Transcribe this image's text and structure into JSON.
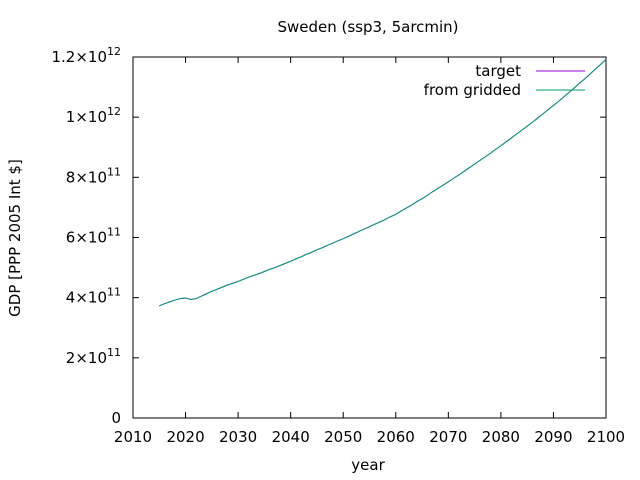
{
  "chart_data": {
    "type": "line",
    "title": "Sweden (ssp3, 5arcmin)",
    "xlabel": "year",
    "ylabel": "GDP [PPP 2005 Int $]",
    "xlim": [
      2010,
      2100
    ],
    "ylim": [
      0,
      1200000000000.0
    ],
    "xticks": [
      2010,
      2020,
      2030,
      2040,
      2050,
      2060,
      2070,
      2080,
      2090,
      2100
    ],
    "yticks": [
      {
        "value": 0,
        "mantissa": "0",
        "exponent": ""
      },
      {
        "value": 200000000000.0,
        "mantissa": "2×10",
        "exponent": "11"
      },
      {
        "value": 400000000000.0,
        "mantissa": "4×10",
        "exponent": "11"
      },
      {
        "value": 600000000000.0,
        "mantissa": "6×10",
        "exponent": "11"
      },
      {
        "value": 800000000000.0,
        "mantissa": "8×10",
        "exponent": "11"
      },
      {
        "value": 1000000000000.0,
        "mantissa": "1×10",
        "exponent": "12"
      },
      {
        "value": 1200000000000.0,
        "mantissa": "1.2×10",
        "exponent": "12"
      }
    ],
    "grid": false,
    "legend_position": "top-right",
    "x": [
      2015,
      2016,
      2017,
      2018,
      2019,
      2020,
      2021,
      2022,
      2023,
      2024,
      2025,
      2026,
      2027,
      2028,
      2029,
      2030,
      2031,
      2032,
      2033,
      2034,
      2035,
      2036,
      2037,
      2038,
      2039,
      2040,
      2041,
      2042,
      2043,
      2044,
      2045,
      2046,
      2047,
      2048,
      2049,
      2050,
      2051,
      2052,
      2053,
      2054,
      2055,
      2056,
      2057,
      2058,
      2059,
      2060,
      2061,
      2062,
      2063,
      2064,
      2065,
      2066,
      2067,
      2068,
      2069,
      2070,
      2071,
      2072,
      2073,
      2074,
      2075,
      2076,
      2077,
      2078,
      2079,
      2080,
      2081,
      2082,
      2083,
      2084,
      2085,
      2086,
      2087,
      2088,
      2089,
      2090,
      2091,
      2092,
      2093,
      2094,
      2095,
      2096,
      2097,
      2098,
      2099,
      2100
    ],
    "series": [
      {
        "name": "target",
        "color": "#9400d3",
        "values": [
          373000000000.0,
          380000000000.0,
          386000000000.0,
          392000000000.0,
          397000000000.0,
          399000000000.0,
          394000000000.0,
          397000000000.0,
          405000000000.0,
          413000000000.0,
          421000000000.0,
          428000000000.0,
          435000000000.0,
          442000000000.0,
          448000000000.0,
          454000000000.0,
          461000000000.0,
          468000000000.0,
          474000000000.0,
          480000000000.0,
          487000000000.0,
          494000000000.0,
          500000000000.0,
          507000000000.0,
          514000000000.0,
          521000000000.0,
          529000000000.0,
          536000000000.0,
          544000000000.0,
          551000000000.0,
          559000000000.0,
          566000000000.0,
          574000000000.0,
          581000000000.0,
          589000000000.0,
          596000000000.0,
          604000000000.0,
          612000000000.0,
          620000000000.0,
          628000000000.0,
          636000000000.0,
          644000000000.0,
          652000000000.0,
          660000000000.0,
          669000000000.0,
          677000000000.0,
          688000000000.0,
          698000000000.0,
          708000000000.0,
          719000000000.0,
          729000000000.0,
          740000000000.0,
          752000000000.0,
          763000000000.0,
          774000000000.0,
          785000000000.0,
          797000000000.0,
          808000000000.0,
          820000000000.0,
          832000000000.0,
          844000000000.0,
          856000000000.0,
          868000000000.0,
          880000000000.0,
          893000000000.0,
          905000000000.0,
          918000000000.0,
          931000000000.0,
          944000000000.0,
          957000000000.0,
          970000000000.0,
          983000000000.0,
          997000000000.0,
          1011000000000.0,
          1025000000000.0,
          1039000000000.0,
          1053000000000.0,
          1068000000000.0,
          1083000000000.0,
          1098000000000.0,
          1113000000000.0,
          1128000000000.0,
          1144000000000.0,
          1160000000000.0,
          1176000000000.0,
          1192000000000.0
        ]
      },
      {
        "name": "from gridded",
        "color": "#009e73",
        "values": [
          373000000000.0,
          380000000000.0,
          386000000000.0,
          392000000000.0,
          397000000000.0,
          399000000000.0,
          394000000000.0,
          397000000000.0,
          405000000000.0,
          413000000000.0,
          421000000000.0,
          428000000000.0,
          435000000000.0,
          442000000000.0,
          448000000000.0,
          454000000000.0,
          461000000000.0,
          468000000000.0,
          474000000000.0,
          480000000000.0,
          487000000000.0,
          494000000000.0,
          500000000000.0,
          507000000000.0,
          514000000000.0,
          521000000000.0,
          529000000000.0,
          536000000000.0,
          544000000000.0,
          551000000000.0,
          559000000000.0,
          566000000000.0,
          574000000000.0,
          581000000000.0,
          589000000000.0,
          596000000000.0,
          604000000000.0,
          612000000000.0,
          620000000000.0,
          628000000000.0,
          636000000000.0,
          644000000000.0,
          652000000000.0,
          660000000000.0,
          669000000000.0,
          677000000000.0,
          688000000000.0,
          698000000000.0,
          708000000000.0,
          719000000000.0,
          729000000000.0,
          740000000000.0,
          752000000000.0,
          763000000000.0,
          774000000000.0,
          785000000000.0,
          797000000000.0,
          808000000000.0,
          820000000000.0,
          832000000000.0,
          844000000000.0,
          856000000000.0,
          868000000000.0,
          880000000000.0,
          893000000000.0,
          905000000000.0,
          918000000000.0,
          931000000000.0,
          944000000000.0,
          957000000000.0,
          970000000000.0,
          983000000000.0,
          997000000000.0,
          1011000000000.0,
          1025000000000.0,
          1039000000000.0,
          1053000000000.0,
          1068000000000.0,
          1083000000000.0,
          1098000000000.0,
          1113000000000.0,
          1128000000000.0,
          1144000000000.0,
          1160000000000.0,
          1176000000000.0,
          1192000000000.0
        ]
      }
    ]
  }
}
